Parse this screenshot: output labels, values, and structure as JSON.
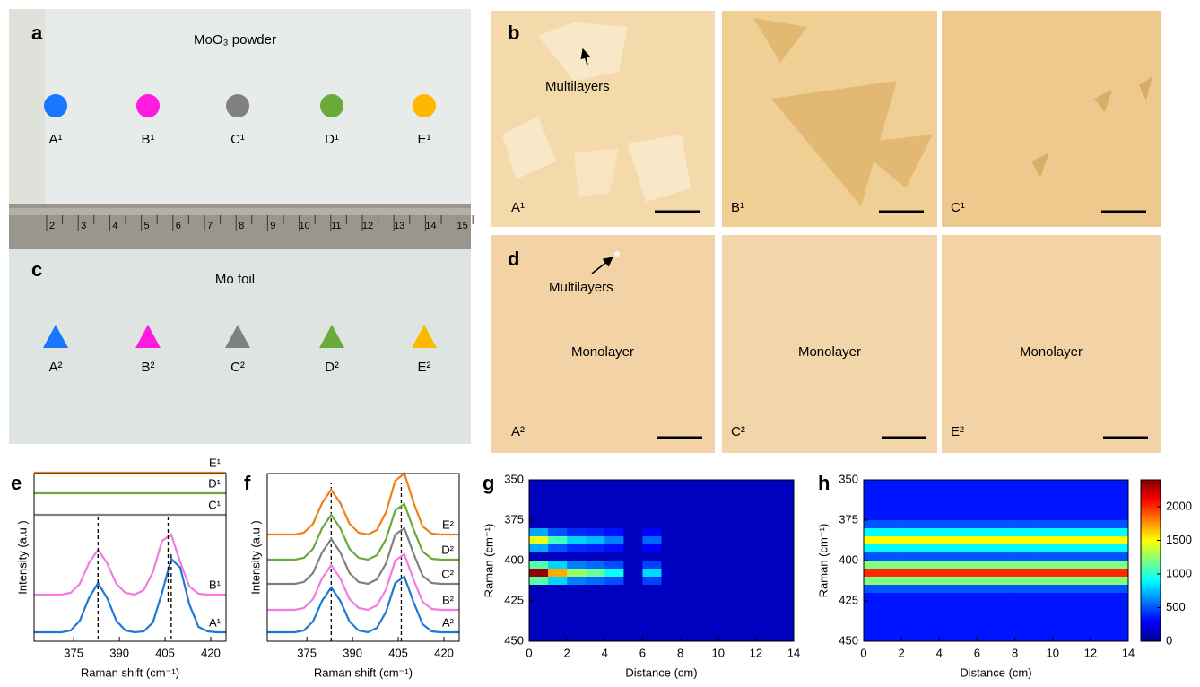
{
  "panel_a": {
    "label": "a",
    "title": "MoO₃ powder",
    "title_color": "#1a1aff",
    "markers": [
      {
        "label": "A¹",
        "color": "#1a75ff"
      },
      {
        "label": "B¹",
        "color": "#ff1ae0"
      },
      {
        "label": "C¹",
        "color": "#808080"
      },
      {
        "label": "D¹",
        "color": "#6aaa3a"
      },
      {
        "label": "E¹",
        "color": "#ffb800"
      }
    ]
  },
  "ruler": {
    "numbers": [
      2,
      3,
      4,
      5,
      6,
      7,
      8,
      9,
      10,
      11,
      12,
      13,
      14,
      15
    ]
  },
  "panel_c": {
    "label": "c",
    "title": "Mo foil",
    "title_color": "#ff1a1a",
    "markers": [
      {
        "label": "A²",
        "color": "#1a75ff"
      },
      {
        "label": "B²",
        "color": "#ff1ae0"
      },
      {
        "label": "C²",
        "color": "#808080"
      },
      {
        "label": "D²",
        "color": "#6aaa3a"
      },
      {
        "label": "E²",
        "color": "#ffb800"
      }
    ]
  },
  "panel_b": {
    "label": "b",
    "annotation": "Multilayers",
    "images": [
      {
        "label": "A¹",
        "color": "#1a75ff"
      },
      {
        "label": "B¹",
        "color": "#ff1ae0"
      },
      {
        "label": "C¹",
        "color": "#9a9a9a"
      }
    ]
  },
  "panel_d": {
    "label": "d",
    "annotation": "Multilayers",
    "images": [
      {
        "label": "A²",
        "color": "#1a75ff",
        "text": "Monolayer"
      },
      {
        "label": "C²",
        "color": "#9a9a9a",
        "text": "Monolayer"
      },
      {
        "label": "E²",
        "color": "#e0a020",
        "text": "Monolayer"
      }
    ]
  },
  "chart_data": [
    {
      "type": "line",
      "label": "e",
      "xlabel": "Raman shift (cm⁻¹)",
      "ylabel": "Intensity (a.u.)",
      "x": [
        362,
        365,
        368,
        371,
        374,
        377,
        380,
        383,
        386,
        389,
        392,
        395,
        398,
        401,
        404,
        407,
        410,
        413,
        416,
        419,
        422,
        425
      ],
      "xlim": [
        362,
        425
      ],
      "xticks": [
        375,
        390,
        405,
        420
      ],
      "series": [
        {
          "name": "A¹",
          "color": "#1f78d4",
          "peaks": [
            383,
            407
          ],
          "values": [
            0,
            0,
            0,
            0,
            0.02,
            0.13,
            0.38,
            0.55,
            0.38,
            0.13,
            0.02,
            0,
            0.01,
            0.11,
            0.44,
            0.82,
            0.72,
            0.31,
            0.06,
            0.01,
            0,
            0
          ]
        },
        {
          "name": "B¹",
          "color": "#f07ce0",
          "peaks": [
            383,
            406
          ],
          "values": [
            0,
            0,
            0,
            0,
            0.02,
            0.12,
            0.35,
            0.5,
            0.35,
            0.12,
            0.02,
            0,
            0.05,
            0.25,
            0.6,
            0.67,
            0.36,
            0.09,
            0.01,
            0,
            0,
            0
          ]
        },
        {
          "name": "C¹",
          "color": "#808080",
          "values": [
            0,
            0,
            0,
            0,
            0,
            0,
            0,
            0,
            0,
            0,
            0,
            0,
            0,
            0,
            0,
            0,
            0,
            0,
            0,
            0,
            0,
            0
          ]
        },
        {
          "name": "D¹",
          "color": "#6aaa3a",
          "values": [
            0,
            0,
            0,
            0,
            0,
            0,
            0,
            0,
            0,
            0,
            0,
            0,
            0,
            0,
            0,
            0,
            0,
            0,
            0,
            0,
            0,
            0
          ]
        },
        {
          "name": "E¹",
          "color": "#f07f1a",
          "values": [
            0,
            0,
            0,
            0,
            0,
            0,
            0,
            0,
            0,
            0,
            0,
            0,
            0,
            0,
            0,
            0,
            0,
            0,
            0,
            0,
            0,
            0
          ]
        }
      ]
    },
    {
      "type": "line",
      "label": "f",
      "xlabel": "Raman shift (cm⁻¹)",
      "ylabel": "Intensity (a.u.)",
      "x": [
        362,
        365,
        368,
        371,
        374,
        377,
        380,
        383,
        386,
        389,
        392,
        395,
        398,
        401,
        404,
        407,
        410,
        413,
        416,
        419,
        422,
        425
      ],
      "xlim": [
        362,
        425
      ],
      "xticks": [
        375,
        390,
        405,
        420
      ],
      "peak_lines": [
        383,
        406
      ],
      "series": [
        {
          "name": "A²",
          "color": "#1f78d4",
          "values": [
            0,
            0,
            0,
            0,
            0.02,
            0.12,
            0.35,
            0.5,
            0.35,
            0.12,
            0.02,
            0,
            0.05,
            0.23,
            0.55,
            0.62,
            0.34,
            0.09,
            0.01,
            0,
            0,
            0
          ]
        },
        {
          "name": "B²",
          "color": "#f07ce0",
          "values": [
            0,
            0,
            0,
            0,
            0.02,
            0.12,
            0.35,
            0.5,
            0.35,
            0.12,
            0.02,
            0,
            0.05,
            0.23,
            0.55,
            0.62,
            0.34,
            0.09,
            0.01,
            0,
            0,
            0
          ]
        },
        {
          "name": "C²",
          "color": "#808080",
          "values": [
            0,
            0,
            0,
            0,
            0.02,
            0.12,
            0.35,
            0.5,
            0.35,
            0.12,
            0.02,
            0,
            0.05,
            0.23,
            0.55,
            0.62,
            0.34,
            0.09,
            0.01,
            0,
            0,
            0
          ]
        },
        {
          "name": "D²",
          "color": "#6aaa3a",
          "values": [
            0,
            0,
            0,
            0,
            0.02,
            0.12,
            0.35,
            0.5,
            0.35,
            0.12,
            0.02,
            0,
            0.05,
            0.23,
            0.55,
            0.62,
            0.34,
            0.09,
            0.01,
            0,
            0,
            0
          ]
        },
        {
          "name": "E²",
          "color": "#f07f1a",
          "values": [
            0,
            0,
            0,
            0,
            0.02,
            0.12,
            0.35,
            0.5,
            0.35,
            0.12,
            0.02,
            0,
            0.05,
            0.25,
            0.6,
            0.68,
            0.36,
            0.09,
            0.01,
            0,
            0,
            0
          ]
        }
      ]
    },
    {
      "type": "heatmap",
      "label": "g",
      "xlabel": "Distance (cm)",
      "ylabel": "Raman (cm⁻¹)",
      "xlim": [
        0,
        14
      ],
      "xticks": [
        0,
        2,
        4,
        6,
        8,
        10,
        12,
        14
      ],
      "ylim": [
        350,
        450
      ],
      "y_inverted": true,
      "yticks": [
        350,
        375,
        400,
        425,
        450
      ],
      "colormap": "jet",
      "zlim": [
        0,
        2400
      ],
      "x_bins": [
        0,
        1,
        2,
        3,
        4,
        5,
        6,
        7,
        8,
        9,
        10,
        11,
        12,
        13,
        14
      ],
      "y_bins": [
        350,
        355,
        360,
        365,
        370,
        375,
        380,
        385,
        390,
        395,
        400,
        405,
        410,
        415,
        420,
        425,
        430,
        435,
        440,
        445,
        450
      ],
      "z": [
        [
          150,
          150,
          150,
          150,
          150,
          150,
          150,
          150,
          150,
          150,
          150,
          150,
          150,
          150
        ],
        [
          150,
          150,
          150,
          150,
          150,
          150,
          150,
          150,
          150,
          150,
          150,
          150,
          150,
          150
        ],
        [
          150,
          150,
          150,
          150,
          150,
          150,
          150,
          150,
          150,
          150,
          150,
          150,
          150,
          150
        ],
        [
          150,
          150,
          150,
          150,
          150,
          150,
          150,
          150,
          150,
          150,
          150,
          150,
          150,
          150
        ],
        [
          150,
          150,
          150,
          150,
          150,
          150,
          150,
          150,
          150,
          150,
          150,
          150,
          150,
          150
        ],
        [
          150,
          150,
          150,
          150,
          150,
          150,
          150,
          150,
          150,
          150,
          150,
          150,
          150,
          150
        ],
        [
          700,
          500,
          400,
          380,
          330,
          150,
          300,
          150,
          150,
          150,
          150,
          150,
          150,
          150
        ],
        [
          1450,
          1050,
          800,
          740,
          600,
          150,
          540,
          150,
          150,
          150,
          150,
          150,
          150,
          150
        ],
        [
          700,
          500,
          400,
          380,
          330,
          150,
          300,
          150,
          150,
          150,
          150,
          150,
          150,
          150
        ],
        [
          150,
          150,
          150,
          150,
          150,
          150,
          150,
          150,
          150,
          150,
          150,
          150,
          150,
          150
        ],
        [
          1100,
          800,
          600,
          550,
          480,
          150,
          450,
          150,
          150,
          150,
          150,
          150,
          150,
          150
        ],
        [
          2350,
          1700,
          1250,
          1140,
          920,
          150,
          810,
          150,
          150,
          150,
          150,
          150,
          150,
          150
        ],
        [
          1100,
          800,
          600,
          550,
          480,
          150,
          450,
          150,
          150,
          150,
          150,
          150,
          150,
          150
        ],
        [
          150,
          150,
          150,
          150,
          150,
          150,
          150,
          150,
          150,
          150,
          150,
          150,
          150,
          150
        ],
        [
          150,
          150,
          150,
          150,
          150,
          150,
          150,
          150,
          150,
          150,
          150,
          150,
          150,
          150
        ],
        [
          150,
          150,
          150,
          150,
          150,
          150,
          150,
          150,
          150,
          150,
          150,
          150,
          150,
          150
        ],
        [
          150,
          150,
          150,
          150,
          150,
          150,
          150,
          150,
          150,
          150,
          150,
          150,
          150,
          150
        ],
        [
          150,
          150,
          150,
          150,
          150,
          150,
          150,
          150,
          150,
          150,
          150,
          150,
          150,
          150
        ],
        [
          150,
          150,
          150,
          150,
          150,
          150,
          150,
          150,
          150,
          150,
          150,
          150,
          150,
          150
        ],
        [
          150,
          150,
          150,
          150,
          150,
          150,
          150,
          150,
          150,
          150,
          150,
          150,
          150,
          150
        ]
      ]
    },
    {
      "type": "heatmap",
      "label": "h",
      "xlabel": "Distance (cm)",
      "ylabel": "Raman (cm⁻¹)",
      "xlim": [
        0,
        14
      ],
      "xticks": [
        0,
        2,
        4,
        6,
        8,
        10,
        12,
        14
      ],
      "ylim": [
        350,
        450
      ],
      "y_inverted": true,
      "yticks": [
        350,
        375,
        400,
        425,
        450
      ],
      "colormap": "jet",
      "zlim": [
        0,
        2400
      ],
      "colorbar_ticks": [
        0,
        500,
        1000,
        1500,
        2000
      ],
      "x_bins": [
        0,
        1,
        2,
        3,
        4,
        5,
        6,
        7,
        8,
        9,
        10,
        11,
        12,
        13,
        14
      ],
      "y_bins": [
        350,
        355,
        360,
        365,
        370,
        375,
        380,
        385,
        390,
        395,
        400,
        405,
        410,
        415,
        420,
        425,
        430,
        435,
        440,
        445,
        450
      ],
      "z": [
        [
          350,
          350,
          350,
          350,
          350,
          350,
          350,
          350,
          350,
          350,
          350,
          350,
          350,
          350
        ],
        [
          350,
          350,
          350,
          350,
          350,
          350,
          350,
          350,
          350,
          350,
          350,
          350,
          350,
          350
        ],
        [
          350,
          350,
          350,
          350,
          350,
          350,
          350,
          350,
          350,
          350,
          350,
          350,
          350,
          350
        ],
        [
          350,
          350,
          350,
          350,
          350,
          350,
          350,
          350,
          350,
          350,
          350,
          350,
          350,
          350
        ],
        [
          350,
          350,
          350,
          350,
          350,
          350,
          350,
          350,
          350,
          350,
          350,
          350,
          350,
          350
        ],
        [
          500,
          500,
          500,
          500,
          500,
          500,
          500,
          500,
          500,
          500,
          500,
          500,
          500,
          500
        ],
        [
          900,
          900,
          900,
          900,
          900,
          900,
          900,
          900,
          900,
          900,
          900,
          900,
          900,
          900
        ],
        [
          1500,
          1500,
          1500,
          1500,
          1500,
          1500,
          1500,
          1500,
          1500,
          1500,
          1500,
          1500,
          1500,
          1500
        ],
        [
          900,
          900,
          900,
          900,
          900,
          900,
          900,
          900,
          900,
          900,
          900,
          900,
          900,
          900
        ],
        [
          500,
          500,
          500,
          500,
          500,
          500,
          500,
          500,
          500,
          500,
          500,
          500,
          500,
          500
        ],
        [
          1200,
          1200,
          1200,
          1200,
          1200,
          1200,
          1200,
          1200,
          1200,
          1200,
          1200,
          1200,
          1200,
          1200
        ],
        [
          2000,
          2000,
          2000,
          2000,
          2000,
          2000,
          2000,
          2000,
          2000,
          2000,
          2000,
          2000,
          2000,
          2000
        ],
        [
          1200,
          1200,
          1200,
          1200,
          1200,
          1200,
          1200,
          1200,
          1200,
          1200,
          1200,
          1200,
          1200,
          1200
        ],
        [
          500,
          500,
          500,
          500,
          500,
          500,
          500,
          500,
          500,
          500,
          500,
          500,
          500,
          500
        ],
        [
          350,
          350,
          350,
          350,
          350,
          350,
          350,
          350,
          350,
          350,
          350,
          350,
          350,
          350
        ],
        [
          350,
          350,
          350,
          350,
          350,
          350,
          350,
          350,
          350,
          350,
          350,
          350,
          350,
          350
        ],
        [
          350,
          350,
          350,
          350,
          350,
          350,
          350,
          350,
          350,
          350,
          350,
          350,
          350,
          350
        ],
        [
          350,
          350,
          350,
          350,
          350,
          350,
          350,
          350,
          350,
          350,
          350,
          350,
          350,
          350
        ],
        [
          350,
          350,
          350,
          350,
          350,
          350,
          350,
          350,
          350,
          350,
          350,
          350,
          350,
          350
        ],
        [
          350,
          350,
          350,
          350,
          350,
          350,
          350,
          350,
          350,
          350,
          350,
          350,
          350,
          350
        ]
      ]
    }
  ]
}
